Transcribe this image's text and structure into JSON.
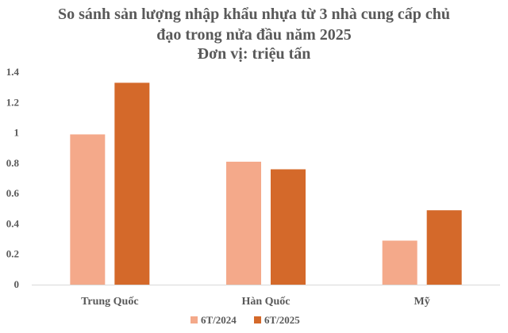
{
  "chart_data": {
    "type": "bar",
    "title": [
      "So sánh sản lượng nhập khẩu nhựa từ 3 nhà cung cấp chủ",
      "đạo trong nửa đầu năm 2025",
      "Đơn vị: triệu tấn"
    ],
    "categories": [
      "Trung Quốc",
      "Hàn Quốc",
      "Mỹ"
    ],
    "series": [
      {
        "name": "6T/2024",
        "values": [
          0.99,
          0.81,
          0.29
        ],
        "color": "#f4a98a"
      },
      {
        "name": "6T/2025",
        "values": [
          1.33,
          0.76,
          0.49
        ],
        "color": "#d4692a"
      }
    ],
    "ylim": [
      0,
      1.4
    ],
    "yticks": [
      "0",
      "0.2",
      "0.4",
      "0.6",
      "0.8",
      "1",
      "1.2",
      "1.4"
    ],
    "grid": false,
    "legend": "bottom",
    "axis_color": "#d9d9d9"
  }
}
